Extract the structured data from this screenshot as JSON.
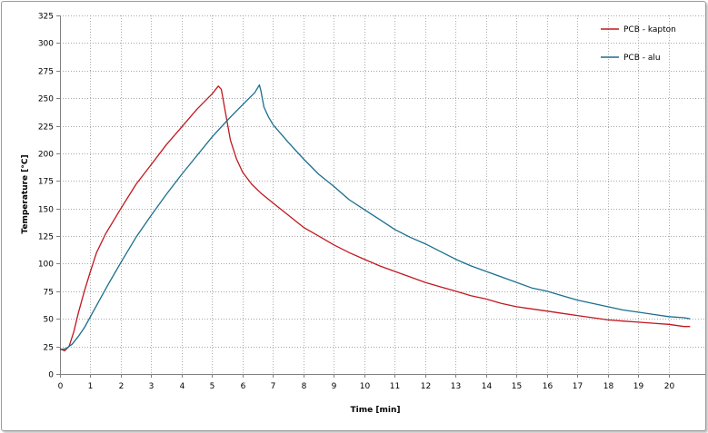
{
  "chart_data": {
    "type": "line",
    "xlabel": "Time [min]",
    "ylabel": "Temperature [°C]",
    "xlim": [
      0,
      21.2
    ],
    "ylim": [
      0,
      325
    ],
    "x_ticks": [
      0,
      1,
      2,
      3,
      4,
      5,
      6,
      7,
      8,
      9,
      10,
      11,
      12,
      13,
      14,
      15,
      16,
      17,
      18,
      19,
      20
    ],
    "y_ticks": [
      0,
      25,
      50,
      75,
      100,
      125,
      150,
      175,
      200,
      225,
      250,
      275,
      300,
      325
    ],
    "grid": true,
    "legend_position": "top-right",
    "series": [
      {
        "name": "PCB - kapton",
        "color": "#c0181e",
        "points": [
          [
            0,
            23
          ],
          [
            0.15,
            21
          ],
          [
            0.3,
            25
          ],
          [
            0.45,
            38
          ],
          [
            0.6,
            55
          ],
          [
            0.8,
            75
          ],
          [
            1.0,
            93
          ],
          [
            1.2,
            110
          ],
          [
            1.5,
            127
          ],
          [
            2.0,
            150
          ],
          [
            2.5,
            172
          ],
          [
            3.0,
            190
          ],
          [
            3.5,
            208
          ],
          [
            4.0,
            224
          ],
          [
            4.5,
            240
          ],
          [
            5.0,
            254
          ],
          [
            5.2,
            261
          ],
          [
            5.3,
            258
          ],
          [
            5.45,
            235
          ],
          [
            5.6,
            212
          ],
          [
            5.8,
            195
          ],
          [
            6.0,
            183
          ],
          [
            6.3,
            172
          ],
          [
            6.6,
            164
          ],
          [
            7.0,
            155
          ],
          [
            7.5,
            144
          ],
          [
            8.0,
            133
          ],
          [
            8.5,
            125
          ],
          [
            9.0,
            117
          ],
          [
            9.5,
            110
          ],
          [
            10.0,
            104
          ],
          [
            10.5,
            98
          ],
          [
            11.0,
            93
          ],
          [
            11.5,
            88
          ],
          [
            12.0,
            83
          ],
          [
            12.5,
            79
          ],
          [
            13.0,
            75
          ],
          [
            13.5,
            71
          ],
          [
            14.0,
            68
          ],
          [
            14.5,
            64
          ],
          [
            15.0,
            61
          ],
          [
            15.5,
            59
          ],
          [
            16.0,
            57
          ],
          [
            16.5,
            55
          ],
          [
            17.0,
            53
          ],
          [
            17.5,
            51
          ],
          [
            18.0,
            49
          ],
          [
            18.5,
            48
          ],
          [
            19.0,
            47
          ],
          [
            19.5,
            46
          ],
          [
            20.0,
            45
          ],
          [
            20.5,
            43
          ],
          [
            20.7,
            43
          ]
        ]
      },
      {
        "name": "PCB - alu",
        "color": "#1a6f8e",
        "points": [
          [
            0,
            22
          ],
          [
            0.2,
            23
          ],
          [
            0.4,
            27
          ],
          [
            0.6,
            34
          ],
          [
            0.8,
            42
          ],
          [
            1.0,
            52
          ],
          [
            1.3,
            67
          ],
          [
            1.6,
            82
          ],
          [
            2.0,
            101
          ],
          [
            2.5,
            124
          ],
          [
            3.0,
            144
          ],
          [
            3.5,
            163
          ],
          [
            4.0,
            181
          ],
          [
            4.5,
            198
          ],
          [
            5.0,
            215
          ],
          [
            5.5,
            230
          ],
          [
            6.0,
            244
          ],
          [
            6.4,
            255
          ],
          [
            6.55,
            262
          ],
          [
            6.6,
            257
          ],
          [
            6.7,
            242
          ],
          [
            6.85,
            233
          ],
          [
            7.0,
            226
          ],
          [
            7.5,
            210
          ],
          [
            8.0,
            195
          ],
          [
            8.5,
            181
          ],
          [
            9.0,
            170
          ],
          [
            9.5,
            158
          ],
          [
            10.0,
            149
          ],
          [
            10.5,
            140
          ],
          [
            11.0,
            131
          ],
          [
            11.5,
            124
          ],
          [
            12.0,
            118
          ],
          [
            12.5,
            111
          ],
          [
            13.0,
            104
          ],
          [
            13.5,
            98
          ],
          [
            14.0,
            93
          ],
          [
            14.5,
            88
          ],
          [
            15.0,
            83
          ],
          [
            15.5,
            78
          ],
          [
            16.0,
            75
          ],
          [
            16.5,
            71
          ],
          [
            17.0,
            67
          ],
          [
            17.5,
            64
          ],
          [
            18.0,
            61
          ],
          [
            18.5,
            58
          ],
          [
            19.0,
            56
          ],
          [
            19.5,
            54
          ],
          [
            20.0,
            52
          ],
          [
            20.5,
            51
          ],
          [
            20.7,
            50
          ]
        ]
      }
    ]
  }
}
